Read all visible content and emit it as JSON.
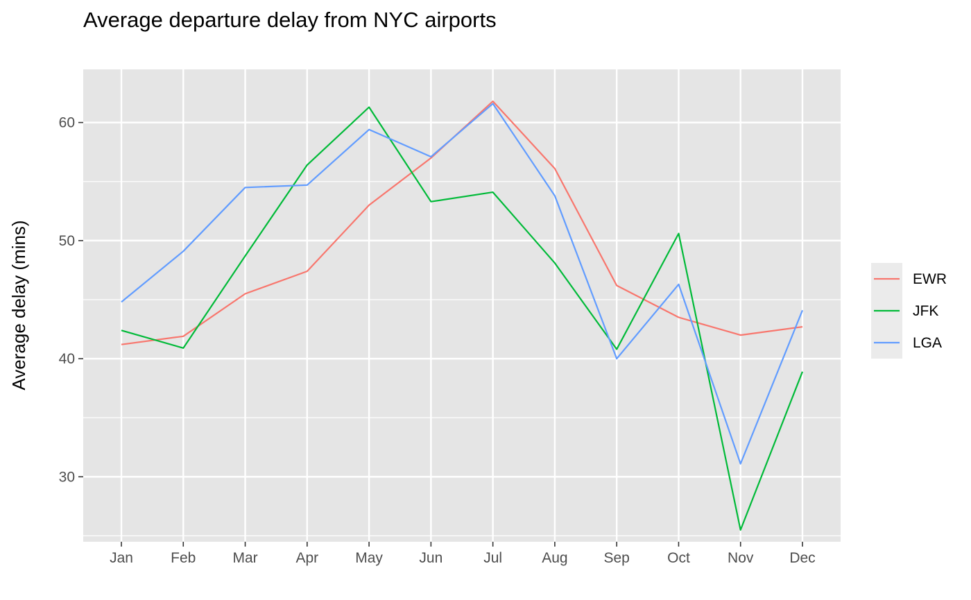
{
  "chart_data": {
    "type": "line",
    "title": "Average departure delay from NYC airports",
    "xlabel": "",
    "ylabel": "Average delay (mins)",
    "categories": [
      "Jan",
      "Feb",
      "Mar",
      "Apr",
      "May",
      "Jun",
      "Jul",
      "Aug",
      "Sep",
      "Oct",
      "Nov",
      "Dec"
    ],
    "ylim": [
      24.5,
      64.5
    ],
    "yticks": [
      30,
      40,
      50,
      60
    ],
    "grid": true,
    "legend": "right",
    "background": "#e5e5e5",
    "series": [
      {
        "name": "EWR",
        "color": "#f8766d",
        "values": [
          41.2,
          41.9,
          45.5,
          47.4,
          53.0,
          57.0,
          61.8,
          56.1,
          46.2,
          43.5,
          42.0,
          42.7
        ]
      },
      {
        "name": "JFK",
        "color": "#00ba38",
        "values": [
          42.4,
          40.9,
          48.7,
          56.4,
          61.3,
          53.3,
          54.1,
          48.1,
          40.8,
          50.6,
          25.5,
          38.9
        ]
      },
      {
        "name": "LGA",
        "color": "#619cff",
        "values": [
          44.8,
          49.1,
          54.5,
          54.7,
          59.4,
          57.1,
          61.6,
          53.8,
          40.0,
          46.3,
          31.1,
          44.1
        ]
      }
    ]
  }
}
